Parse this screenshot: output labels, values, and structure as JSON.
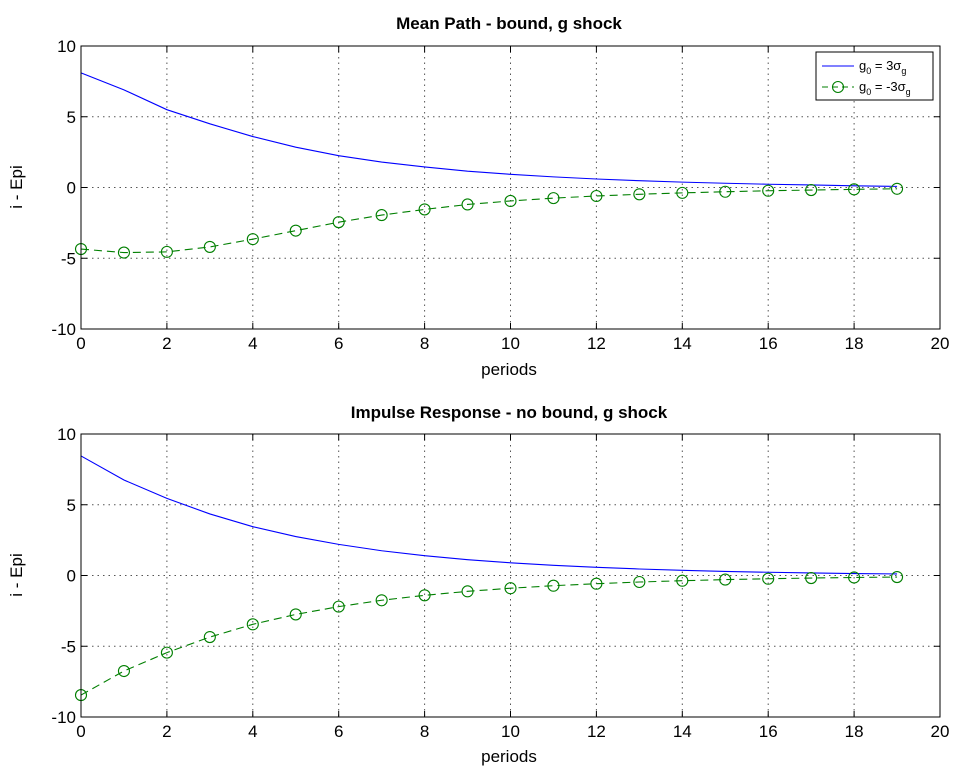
{
  "chart_data": [
    {
      "type": "line",
      "title": "Mean Path - bound, g shock",
      "xlabel": "periods",
      "ylabel": "i - Epi",
      "xlim": [
        0,
        20
      ],
      "ylim": [
        -10,
        10
      ],
      "xticks": [
        0,
        2,
        4,
        6,
        8,
        10,
        12,
        14,
        16,
        18,
        20
      ],
      "yticks": [
        -10,
        -5,
        0,
        5,
        10
      ],
      "grid": true,
      "legend_position": "top-right",
      "x": [
        0,
        1,
        2,
        3,
        4,
        5,
        6,
        7,
        8,
        9,
        10,
        11,
        12,
        13,
        14,
        15,
        16,
        17,
        18,
        19
      ],
      "series": [
        {
          "legend_base": "g",
          "legend_sub": "0",
          "legend_mid": " =  3",
          "legend_sigma": "σ",
          "legend_sigma_sub": "g",
          "color": "#0000ff",
          "line": "solid",
          "marker": "none",
          "values": [
            8.1,
            6.9,
            5.5,
            4.5,
            3.6,
            2.85,
            2.25,
            1.8,
            1.45,
            1.15,
            0.93,
            0.75,
            0.6,
            0.48,
            0.38,
            0.3,
            0.23,
            0.18,
            0.12,
            0.08
          ]
        },
        {
          "legend_base": "g",
          "legend_sub": "0",
          "legend_mid": " = -3",
          "legend_sigma": "σ",
          "legend_sigma_sub": "g",
          "color": "#007f00",
          "line": "dashed",
          "marker": "circle",
          "values": [
            -4.35,
            -4.6,
            -4.55,
            -4.2,
            -3.65,
            -3.05,
            -2.45,
            -1.95,
            -1.55,
            -1.2,
            -0.95,
            -0.75,
            -0.6,
            -0.48,
            -0.38,
            -0.3,
            -0.23,
            -0.18,
            -0.13,
            -0.09
          ]
        }
      ]
    },
    {
      "type": "line",
      "title": "Impulse Response - no bound, g shock",
      "xlabel": "periods",
      "ylabel": "i - Epi",
      "xlim": [
        0,
        20
      ],
      "ylim": [
        -10,
        10
      ],
      "xticks": [
        0,
        2,
        4,
        6,
        8,
        10,
        12,
        14,
        16,
        18,
        20
      ],
      "yticks": [
        -10,
        -5,
        0,
        5,
        10
      ],
      "grid": true,
      "x": [
        0,
        1,
        2,
        3,
        4,
        5,
        6,
        7,
        8,
        9,
        10,
        11,
        12,
        13,
        14,
        15,
        16,
        17,
        18,
        19
      ],
      "series": [
        {
          "color": "#0000ff",
          "line": "solid",
          "marker": "none",
          "values": [
            8.45,
            6.75,
            5.45,
            4.35,
            3.45,
            2.75,
            2.2,
            1.75,
            1.4,
            1.12,
            0.9,
            0.72,
            0.58,
            0.46,
            0.37,
            0.29,
            0.23,
            0.18,
            0.14,
            0.11
          ]
        },
        {
          "color": "#007f00",
          "line": "dashed",
          "marker": "circle",
          "values": [
            -8.45,
            -6.75,
            -5.45,
            -4.35,
            -3.45,
            -2.75,
            -2.2,
            -1.75,
            -1.4,
            -1.12,
            -0.9,
            -0.72,
            -0.58,
            -0.46,
            -0.37,
            -0.29,
            -0.23,
            -0.18,
            -0.14,
            -0.11
          ]
        }
      ]
    }
  ]
}
